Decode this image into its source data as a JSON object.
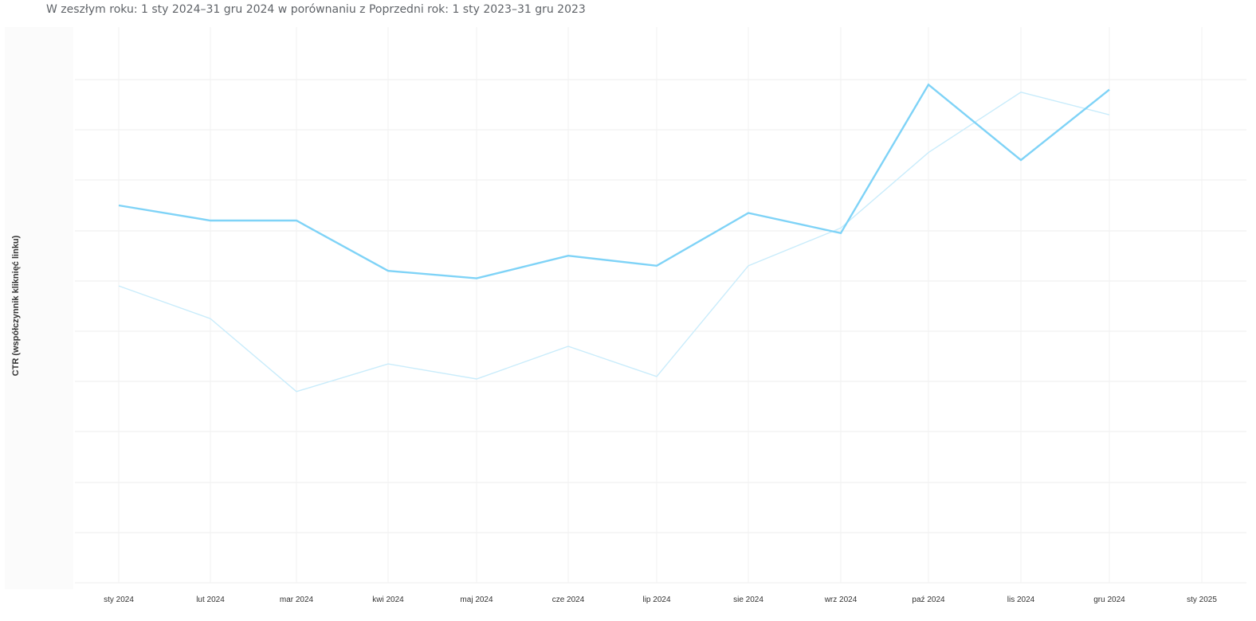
{
  "header": {
    "subtitle": "W zeszłym roku: 1 sty 2024–31 gru 2024 w porównaniu z Poprzedni rok: 1 sty 2023–31 gru 2023"
  },
  "chart_data": {
    "type": "line",
    "ylabel": "CTR (współczynnik kliknięć linku)",
    "categories": [
      "sty 2024",
      "lut 2024",
      "mar 2024",
      "kwi 2024",
      "maj 2024",
      "cze 2024",
      "lip 2024",
      "sie 2024",
      "wrz 2024",
      "paź 2024",
      "lis 2024",
      "gru 2024",
      "sty 2025"
    ],
    "y_tick_labels_visible": false,
    "grid": true,
    "series": [
      {
        "color": "#7fd3f7",
        "emphasis": "current",
        "values": [
          7.5,
          7.2,
          7.2,
          6.2,
          6.05,
          6.5,
          6.3,
          7.35,
          6.95,
          9.9,
          8.4,
          9.8,
          null
        ]
      },
      {
        "color": "#c9ecfb",
        "emphasis": "previous",
        "values": [
          5.9,
          5.25,
          3.8,
          4.35,
          4.05,
          4.7,
          4.1,
          6.3,
          7.05,
          8.55,
          9.75,
          9.3,
          null
        ]
      }
    ]
  }
}
